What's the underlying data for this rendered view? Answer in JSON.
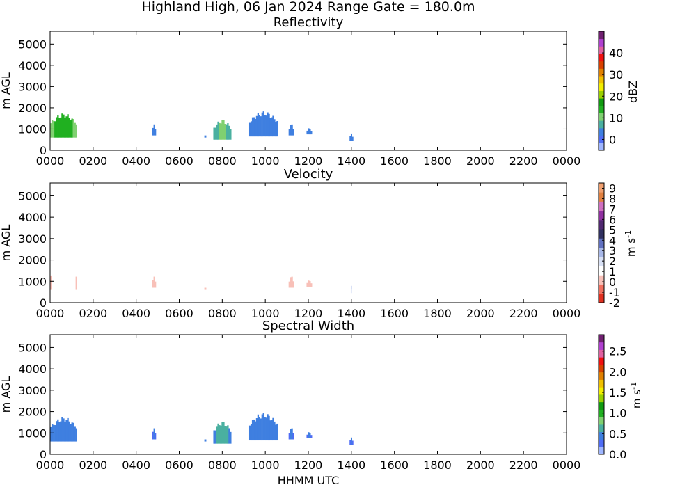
{
  "figure": {
    "suptitle": "Highland High, 06 Jan 2024 Range Gate = 180.0m",
    "xlabel": "HHMM UTC"
  },
  "chart_data": [
    {
      "type": "heatmap",
      "title": "Reflectivity",
      "ylabel": "m AGL",
      "x_ticklabels": [
        "0000",
        "0200",
        "0400",
        "0600",
        "0800",
        "1000",
        "1200",
        "1400",
        "1600",
        "1800",
        "2000",
        "2200",
        "0000"
      ],
      "xlim_hours": [
        0,
        24
      ],
      "y_ticks": [
        0,
        1000,
        2000,
        3000,
        4000,
        5000
      ],
      "ylim": [
        0,
        5600
      ],
      "colorbar": {
        "label": "dBZ",
        "range": [
          -5,
          50
        ],
        "ticks": [
          0,
          10,
          20,
          30,
          40
        ],
        "colors": [
          "#9fb6ff",
          "#4f6cf5",
          "#3f7fe0",
          "#4ab0a0",
          "#7fd070",
          "#20b020",
          "#109a10",
          "#9ad000",
          "#f2ee00",
          "#f0c000",
          "#e08000",
          "#d84000",
          "#f01010",
          "#e060a0",
          "#b040d0",
          "#702070"
        ]
      },
      "echoes": [
        {
          "start_hhmm": "0000",
          "end_hhmm": "0115",
          "base_m": 600,
          "top_m": 1750,
          "value": 12
        },
        {
          "start_hhmm": "0445",
          "end_hhmm": "0455",
          "base_m": 700,
          "top_m": 1250,
          "value": 3
        },
        {
          "start_hhmm": "0710",
          "end_hhmm": "0715",
          "base_m": 600,
          "top_m": 700,
          "value": 2
        },
        {
          "start_hhmm": "0735",
          "end_hhmm": "0825",
          "base_m": 500,
          "top_m": 1450,
          "value": 8
        },
        {
          "start_hhmm": "0915",
          "end_hhmm": "1035",
          "base_m": 650,
          "top_m": 1850,
          "value": 4
        },
        {
          "start_hhmm": "1105",
          "end_hhmm": "1120",
          "base_m": 700,
          "top_m": 1250,
          "value": 3
        },
        {
          "start_hhmm": "1155",
          "end_hhmm": "1210",
          "base_m": 750,
          "top_m": 1050,
          "value": 3
        },
        {
          "start_hhmm": "1355",
          "end_hhmm": "1405",
          "base_m": 450,
          "top_m": 800,
          "value": 3
        }
      ]
    },
    {
      "type": "heatmap",
      "title": "Velocity",
      "ylabel": "m s^-1",
      "ylabel_left": "m AGL",
      "x_ticklabels": [
        "0000",
        "0200",
        "0400",
        "0600",
        "0800",
        "1000",
        "1200",
        "1400",
        "1600",
        "1800",
        "2000",
        "2200",
        "0000"
      ],
      "xlim_hours": [
        0,
        24
      ],
      "y_ticks": [
        0,
        1000,
        2000,
        3000,
        4000,
        5000
      ],
      "ylim": [
        0,
        5600
      ],
      "colorbar": {
        "label": "m s^-1",
        "range": [
          -2,
          9.5
        ],
        "ticks": [
          -2,
          -1,
          0,
          1,
          2,
          3,
          4,
          5,
          6,
          7,
          8,
          9
        ],
        "colors": [
          "#e03020",
          "#f07060",
          "#f8c0b8",
          "#ffffff",
          "#d8e0f4",
          "#a8b8e8",
          "#6070c0",
          "#303060",
          "#502870",
          "#9030a0",
          "#d070c0",
          "#e08040",
          "#f0a070"
        ]
      },
      "echoes": [
        {
          "start_hhmm": "0000",
          "end_hhmm": "0115",
          "base_m": 600,
          "top_m": 1750,
          "value": 0.7
        },
        {
          "start_hhmm": "0445",
          "end_hhmm": "0455",
          "base_m": 700,
          "top_m": 1250,
          "value": 0.5
        },
        {
          "start_hhmm": "0710",
          "end_hhmm": "0715",
          "base_m": 600,
          "top_m": 700,
          "value": 0.5
        },
        {
          "start_hhmm": "0735",
          "end_hhmm": "0825",
          "base_m": 500,
          "top_m": 1450,
          "value": 0.8
        },
        {
          "start_hhmm": "0915",
          "end_hhmm": "1035",
          "base_m": 650,
          "top_m": 1850,
          "value": 1.0
        },
        {
          "start_hhmm": "1105",
          "end_hhmm": "1120",
          "base_m": 700,
          "top_m": 1250,
          "value": 0.5
        },
        {
          "start_hhmm": "1155",
          "end_hhmm": "1210",
          "base_m": 750,
          "top_m": 1050,
          "value": 0.4
        },
        {
          "start_hhmm": "1355",
          "end_hhmm": "1405",
          "base_m": 450,
          "top_m": 800,
          "value": 1.5
        }
      ]
    },
    {
      "type": "heatmap",
      "title": "Spectral Width",
      "ylabel": "m s^-1",
      "ylabel_left": "m AGL",
      "x_ticklabels": [
        "0000",
        "0200",
        "0400",
        "0600",
        "0800",
        "1000",
        "1200",
        "1400",
        "1600",
        "1800",
        "2000",
        "2200",
        "0000"
      ],
      "xlim_hours": [
        0,
        24
      ],
      "y_ticks": [
        0,
        1000,
        2000,
        3000,
        4000,
        5000
      ],
      "ylim": [
        0,
        5600
      ],
      "colorbar": {
        "label": "m s^-1",
        "range": [
          0,
          2.9
        ],
        "ticks": [
          0.0,
          0.5,
          1.0,
          1.5,
          2.0,
          2.5
        ],
        "tick_labels": [
          "0.0",
          "0.5",
          "1.0",
          "1.5",
          "2.0",
          "2.5"
        ],
        "colors": [
          "#9fb6ff",
          "#4f6cf5",
          "#3f7fe0",
          "#4ab0a0",
          "#7fd070",
          "#20b020",
          "#109a10",
          "#9ad000",
          "#f2ee00",
          "#f0c000",
          "#e08000",
          "#d84000",
          "#f01010",
          "#e060a0",
          "#b040d0",
          "#702070"
        ]
      },
      "echoes": [
        {
          "start_hhmm": "0000",
          "end_hhmm": "0115",
          "base_m": 600,
          "top_m": 1750,
          "value": 0.4
        },
        {
          "start_hhmm": "0445",
          "end_hhmm": "0455",
          "base_m": 700,
          "top_m": 1250,
          "value": 0.35
        },
        {
          "start_hhmm": "0710",
          "end_hhmm": "0715",
          "base_m": 600,
          "top_m": 700,
          "value": 0.35
        },
        {
          "start_hhmm": "0735",
          "end_hhmm": "0825",
          "base_m": 500,
          "top_m": 1550,
          "value": 0.55
        },
        {
          "start_hhmm": "0915",
          "end_hhmm": "1035",
          "base_m": 650,
          "top_m": 1950,
          "value": 0.4
        },
        {
          "start_hhmm": "1105",
          "end_hhmm": "1120",
          "base_m": 700,
          "top_m": 1250,
          "value": 0.35
        },
        {
          "start_hhmm": "1155",
          "end_hhmm": "1210",
          "base_m": 750,
          "top_m": 1050,
          "value": 0.35
        },
        {
          "start_hhmm": "1355",
          "end_hhmm": "1405",
          "base_m": 450,
          "top_m": 800,
          "value": 0.35
        }
      ]
    }
  ]
}
